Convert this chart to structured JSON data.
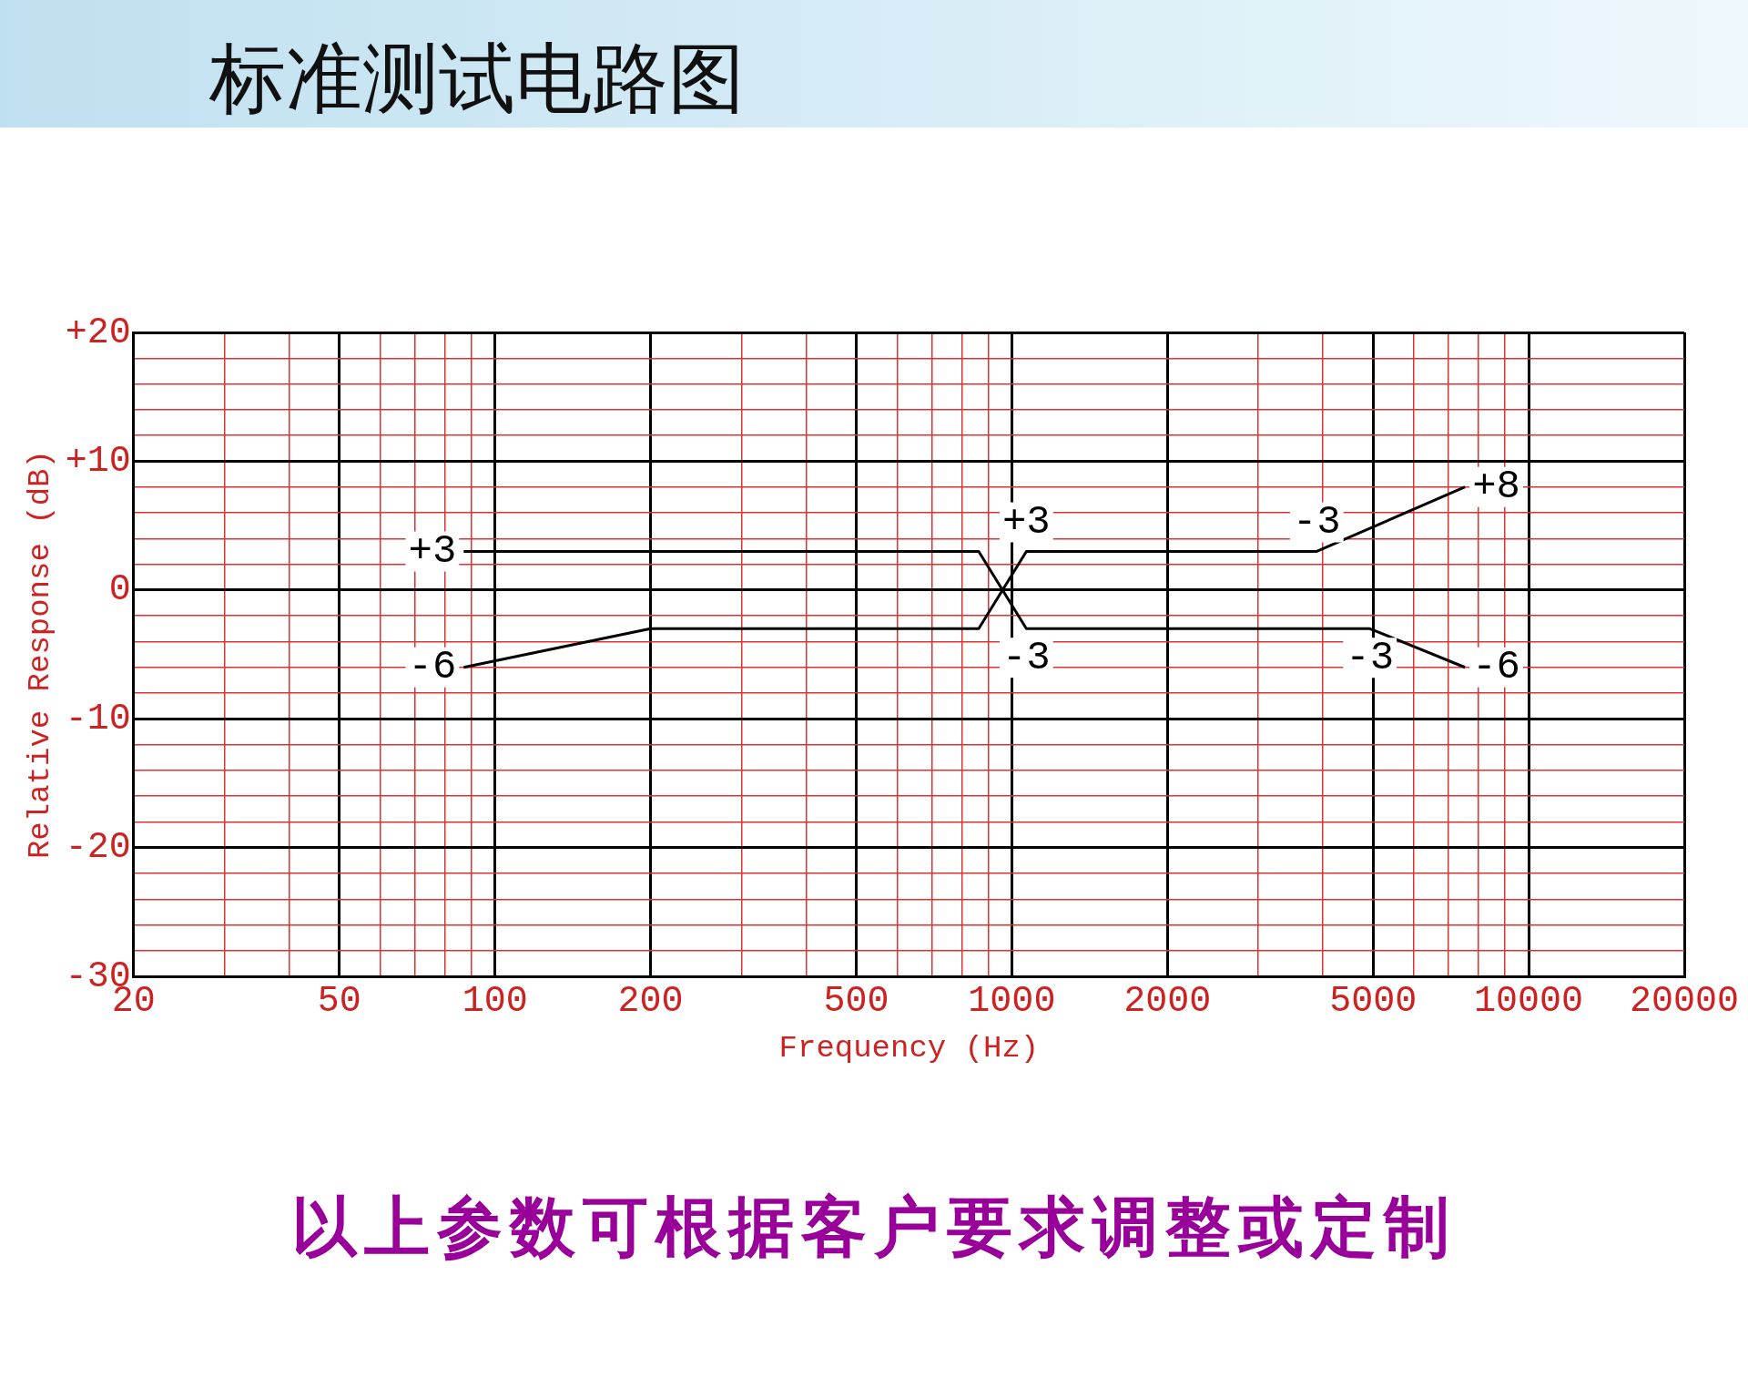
{
  "chart_data": {
    "type": "line",
    "title": "标准测试电路图",
    "xlabel": "Frequency (Hz)",
    "ylabel": "Relative Response (dB)",
    "log": "x",
    "grid": true,
    "legend": false,
    "marker": "none",
    "line_style": "solid",
    "xlim": [
      20,
      20000
    ],
    "ylim": [
      -30,
      20
    ],
    "xticks": [
      20,
      {
        "value": 30,
        "label": null
      },
      {
        "value": 40,
        "label": null
      },
      50,
      {
        "value": 60,
        "label": null
      },
      {
        "value": 70,
        "label": null
      },
      {
        "value": 80,
        "label": null
      },
      {
        "value": 90,
        "label": null
      },
      100,
      200,
      {
        "value": 300,
        "label": null
      },
      {
        "value": 400,
        "label": null
      },
      500,
      {
        "value": 600,
        "label": null
      },
      {
        "value": 700,
        "label": null
      },
      {
        "value": 800,
        "label": null
      },
      {
        "value": 900,
        "label": null
      },
      1000,
      2000,
      {
        "value": 3000,
        "label": null
      },
      {
        "value": 4000,
        "label": null
      },
      5000,
      {
        "value": 6000,
        "label": null
      },
      {
        "value": 7000,
        "label": null
      },
      {
        "value": 8000,
        "label": null
      },
      {
        "value": 9000,
        "label": null
      },
      10000,
      20000
    ],
    "yticks": [
      -30,
      {
        "value": -28,
        "label": null
      },
      {
        "value": -26,
        "label": null
      },
      {
        "value": -24,
        "label": null
      },
      {
        "value": -22,
        "label": null
      },
      -20,
      {
        "value": -18,
        "label": null
      },
      {
        "value": -16,
        "label": null
      },
      {
        "value": -14,
        "label": null
      },
      {
        "value": -12,
        "label": null
      },
      -10,
      {
        "value": -8,
        "label": null
      },
      {
        "value": -6,
        "label": null
      },
      {
        "value": -4,
        "label": null
      },
      {
        "value": -2,
        "label": null
      },
      0,
      {
        "value": 2,
        "label": null
      },
      {
        "value": 4,
        "label": null
      },
      {
        "value": 6,
        "label": null
      },
      {
        "value": 8,
        "label": null
      },
      {
        "value": 10,
        "label": "+10"
      },
      {
        "value": 12,
        "label": null
      },
      {
        "value": 14,
        "label": null
      },
      {
        "value": 16,
        "label": null
      },
      {
        "value": 18,
        "label": null
      },
      {
        "value": 20,
        "label": "+20"
      }
    ],
    "series": [
      {
        "color": "#000000",
        "x": [
          87,
          863,
          1067,
          4930,
          7530
        ],
        "values": [
          3,
          3,
          -3,
          -3,
          -6
        ]
      },
      {
        "color": "#000000",
        "x": [
          87,
          200,
          863,
          1067,
          3890,
          7530
        ],
        "values": [
          -6,
          -3,
          -3,
          3,
          3,
          8
        ]
      }
    ],
    "annotations": [
      {
        "text": "+3",
        "x": 87,
        "y": 3
      },
      {
        "text": "-6",
        "x": 87,
        "y": -6
      },
      {
        "text": "+3",
        "x": 1067,
        "y": 3
      },
      {
        "text": "-3",
        "x": 1067,
        "y": -3
      },
      {
        "text": "-3",
        "x": 3890,
        "y": 3
      },
      {
        "text": "+8",
        "x": 7530,
        "y": 8
      },
      {
        "text": "-3",
        "x": 4930,
        "y": -3
      },
      {
        "text": "-6",
        "x": 7530,
        "y": -6
      },
      "以上参数可根据客户要求调整或定制"
    ]
  }
}
